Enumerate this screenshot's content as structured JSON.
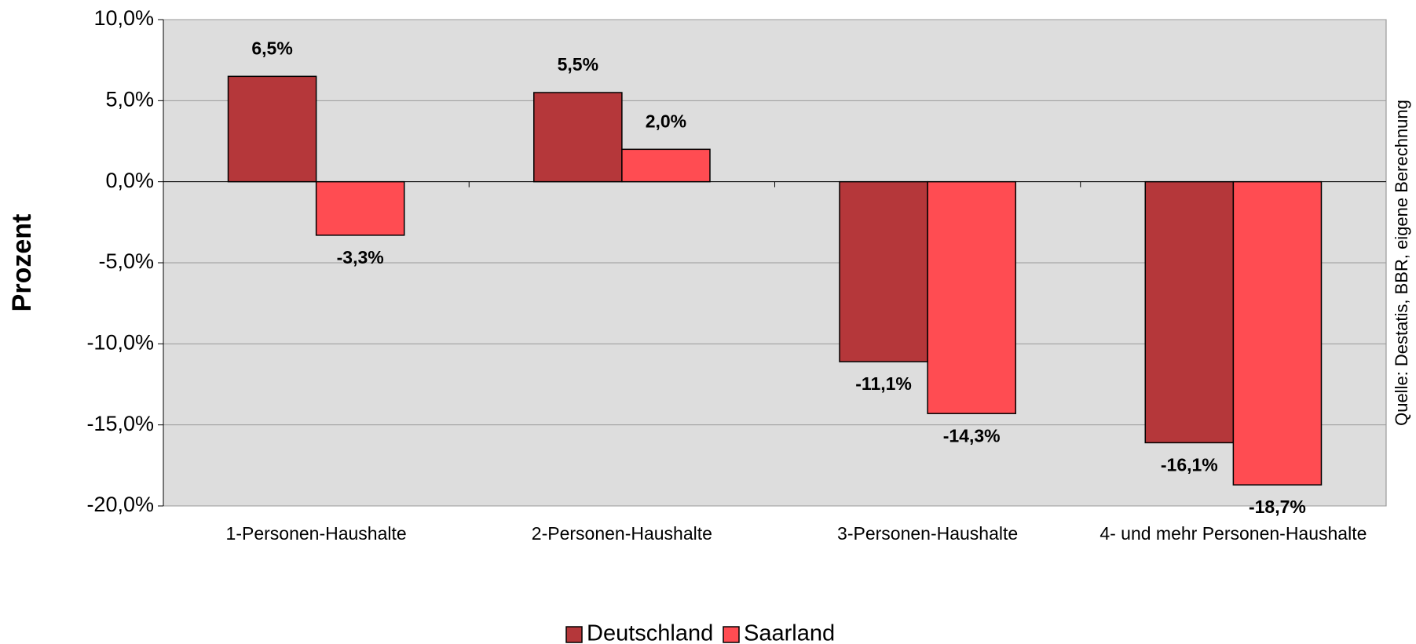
{
  "chart_data": {
    "type": "bar",
    "y_label": "Prozent",
    "source": "Quelle: Destatis, BBR, eigene Berechnung",
    "categories": [
      "1-Personen-Haushalte",
      "2-Personen-Haushalte",
      "3-Personen-Haushalte",
      "4- und mehr Personen-Haushalte"
    ],
    "series": [
      {
        "name": "Deutschland",
        "color": "#b5373a",
        "values": [
          6.5,
          5.5,
          -11.1,
          -16.1
        ],
        "value_labels": [
          "6,5%",
          "5,5%",
          "-11,1%",
          "-16,1%"
        ]
      },
      {
        "name": "Saarland",
        "color": "#ff4c52",
        "values": [
          -3.3,
          2.0,
          -14.3,
          -18.7
        ],
        "value_labels": [
          "-3,3%",
          "2,0%",
          "-14,3%",
          "-18,7%"
        ]
      }
    ],
    "ylim": [
      -20,
      10
    ],
    "yticks": [
      {
        "value": -20,
        "label": "-20,0%"
      },
      {
        "value": -15,
        "label": "-15,0%"
      },
      {
        "value": -10,
        "label": "-10,0%"
      },
      {
        "value": -5,
        "label": "-5,0%"
      },
      {
        "value": 0,
        "label": "0,0%"
      },
      {
        "value": 5,
        "label": "5,0%"
      },
      {
        "value": 10,
        "label": "10,0%"
      }
    ],
    "grid": true
  }
}
